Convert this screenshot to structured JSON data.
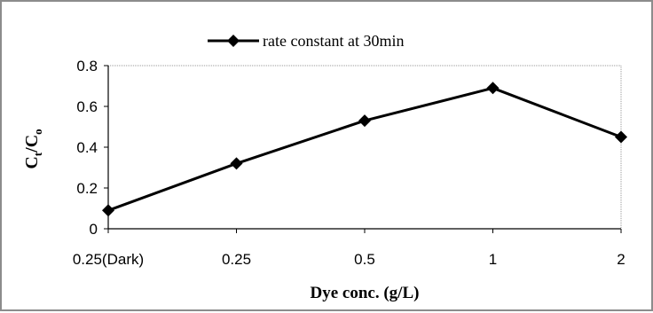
{
  "chart_data": {
    "type": "line",
    "categories": [
      "0.25(Dark)",
      "0.25",
      "0.5",
      "1",
      "2"
    ],
    "series": [
      {
        "name": "rate constant at 30min",
        "values": [
          0.09,
          0.32,
          0.53,
          0.69,
          0.45
        ]
      }
    ],
    "ylim": [
      0,
      0.8
    ],
    "yticks": [
      0,
      0.2,
      0.4,
      0.6,
      0.8
    ],
    "ytick_labels": [
      "0",
      "0.2",
      "0.4",
      "0.6",
      "0.8"
    ],
    "xlabel": "Dye conc. (g/L)",
    "ylabel": {
      "main": "C",
      "sub1": "t",
      "slash": "/C",
      "sub2": "o"
    },
    "legend_position": "top-center",
    "grid": false,
    "line_color": "#000000",
    "marker": "diamond"
  }
}
